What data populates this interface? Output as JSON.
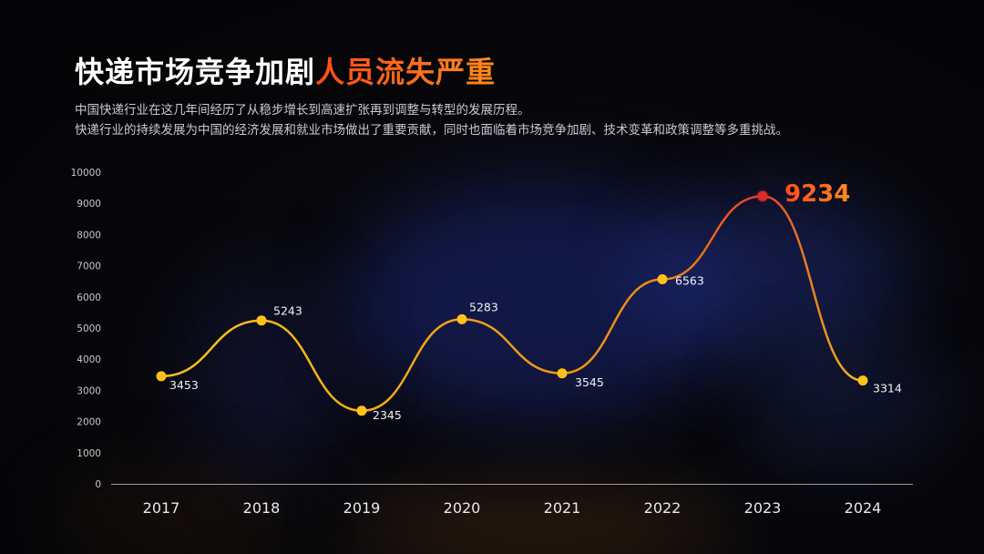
{
  "colors": {
    "line_start": "#f5c518",
    "line_end": "#f08a10",
    "highlight_line": "#e0402a",
    "highlight_point": "#e02a2a",
    "highlight_label": "#ff6a1a",
    "point": "#ffc21a",
    "title_accent": "#ff6a1a"
  },
  "header": {
    "title_main": "快递市场竞争加剧",
    "title_accent": "人员流失严重",
    "subtitle_line1": "中国快递行业在这几年间经历了从稳步增长到高速扩张再到调整与转型的发展历程。",
    "subtitle_line2": "快递行业的持续发展为中国的经济发展和就业市场做出了重要贡献，同时也面临着市场竞争加剧、技术变革和政策调整等多重挑战。"
  },
  "chart_data": {
    "type": "line",
    "categories": [
      "2017",
      "2018",
      "2019",
      "2020",
      "2021",
      "2022",
      "2023",
      "2024"
    ],
    "values": [
      3453,
      5243,
      2345,
      5283,
      3545,
      6563,
      9234,
      3314
    ],
    "data_labels": [
      "3453",
      "5243",
      "2345",
      "5283",
      "3545",
      "6563",
      "9234",
      "3314"
    ],
    "highlight_index": 6,
    "ylim": [
      0,
      10000
    ],
    "yticks": [
      "0",
      "1000",
      "2000",
      "3000",
      "4000",
      "5000",
      "6000",
      "7000",
      "8000",
      "9000",
      "10000"
    ],
    "smooth": true,
    "grid": false,
    "legend": "none"
  }
}
